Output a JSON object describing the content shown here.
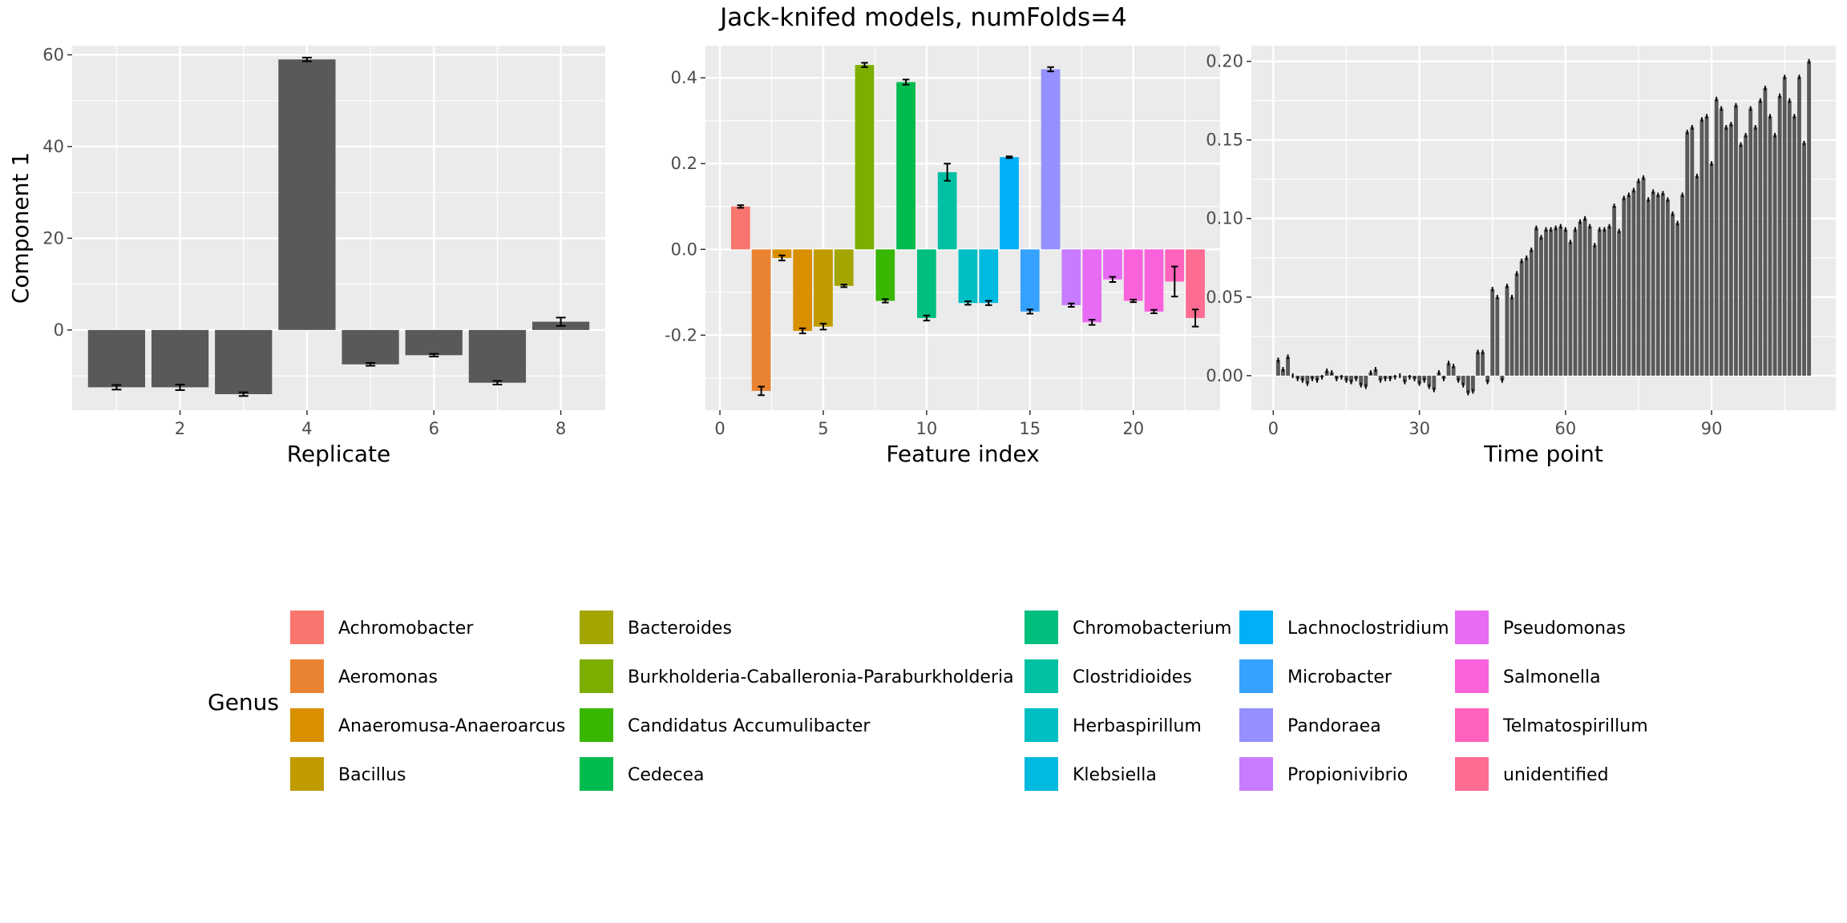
{
  "title": "Jack-knifed models, numFolds=4",
  "colors": {
    "panel_bg": "#ebebeb",
    "grid": "#ffffff",
    "bar_gray": "#595959",
    "tick_text": "#4d4d4d",
    "text": "#000000"
  },
  "chart_data": [
    {
      "type": "bar",
      "panel": "replicate",
      "xlabel": "Replicate",
      "ylabel": "Component 1",
      "xlim": [
        0.3,
        8.7
      ],
      "ylim": [
        -17.5,
        62
      ],
      "xticks": [
        2,
        4,
        6,
        8
      ],
      "yticks": [
        0,
        20,
        40,
        60
      ],
      "yminor": [
        -10,
        10,
        30,
        50
      ],
      "x": [
        1,
        2,
        3,
        4,
        5,
        6,
        7,
        8
      ],
      "values": [
        -12.5,
        -12.5,
        -14,
        59,
        -7.5,
        -5.5,
        -11.5,
        1.8
      ],
      "error": [
        0.5,
        0.6,
        0.4,
        0.4,
        0.3,
        0.3,
        0.4,
        0.9
      ],
      "color": "#595959"
    },
    {
      "type": "bar",
      "panel": "feature",
      "xlabel": "Feature index",
      "ylabel": "",
      "xlim": [
        -0.7,
        24.2
      ],
      "ylim": [
        -0.375,
        0.475
      ],
      "xticks": [
        0,
        5,
        10,
        15,
        20
      ],
      "yticks": [
        -0.2,
        0.0,
        0.2,
        0.4
      ],
      "ytick_labels": [
        "-0.2",
        "0.0",
        "0.2",
        "0.4"
      ],
      "yminor": [
        -0.3,
        -0.1,
        0.1,
        0.3
      ],
      "x": [
        1,
        2,
        3,
        4,
        5,
        6,
        7,
        8,
        9,
        10,
        11,
        12,
        13,
        14,
        15,
        16,
        17,
        18,
        19,
        20,
        21,
        22,
        23
      ],
      "values": [
        0.1,
        -0.33,
        -0.02,
        -0.19,
        -0.18,
        -0.085,
        0.43,
        -0.12,
        0.39,
        -0.16,
        0.18,
        -0.125,
        -0.125,
        0.215,
        -0.145,
        0.42,
        -0.13,
        -0.17,
        -0.07,
        -0.12,
        -0.145,
        -0.075,
        -0.16
      ],
      "error": [
        0.003,
        0.01,
        0.006,
        0.006,
        0.007,
        0.003,
        0.005,
        0.004,
        0.006,
        0.006,
        0.02,
        0.004,
        0.005,
        0.002,
        0.005,
        0.005,
        0.004,
        0.006,
        0.006,
        0.003,
        0.004,
        0.035,
        0.02
      ],
      "genus": [
        "Achromobacter",
        "Aeromonas",
        "Anaeromusa-Anaeroarcus",
        "Anaeromusa-Anaeroarcus",
        "Bacillus",
        "Bacteroides",
        "Burkholderia-Caballeronia-Paraburkholderia",
        "Candidatus Accumulibacter",
        "Cedecea",
        "Chromobacterium",
        "Clostridioides",
        "Herbaspirillum",
        "Klebsiella",
        "Lachnoclostridium",
        "Microbacter",
        "Pandoraea",
        "Propionivibrio",
        "Pseudomonas",
        "Pseudomonas",
        "Salmonella",
        "Salmonella",
        "Telmatospirillum",
        "unidentified"
      ]
    },
    {
      "type": "bar",
      "panel": "timepoint",
      "xlabel": "Time point",
      "ylabel": "",
      "xlim": [
        -4.5,
        115.5
      ],
      "ylim": [
        -0.022,
        0.21
      ],
      "xticks": [
        0,
        30,
        60,
        90
      ],
      "yticks": [
        0.0,
        0.05,
        0.1,
        0.15,
        0.2
      ],
      "ytick_labels": [
        "0.00",
        "0.05",
        "0.10",
        "0.15",
        "0.20"
      ],
      "yminor": [
        0.025,
        0.075,
        0.125,
        0.175
      ],
      "x": [
        1,
        2,
        3,
        4,
        5,
        6,
        7,
        8,
        9,
        10,
        11,
        12,
        13,
        14,
        15,
        16,
        17,
        18,
        19,
        20,
        21,
        22,
        23,
        24,
        25,
        26,
        27,
        28,
        29,
        30,
        31,
        32,
        33,
        34,
        35,
        36,
        37,
        38,
        39,
        40,
        41,
        42,
        43,
        44,
        45,
        46,
        47,
        48,
        49,
        50,
        51,
        52,
        53,
        54,
        55,
        56,
        57,
        58,
        59,
        60,
        61,
        62,
        63,
        64,
        65,
        66,
        67,
        68,
        69,
        70,
        71,
        72,
        73,
        74,
        75,
        76,
        77,
        78,
        79,
        80,
        81,
        82,
        83,
        84,
        85,
        86,
        87,
        88,
        89,
        90,
        91,
        92,
        93,
        94,
        95,
        96,
        97,
        98,
        99,
        100,
        101,
        102,
        103,
        104,
        105,
        106,
        107,
        108,
        109,
        110
      ],
      "values": [
        0.01,
        0.004,
        0.012,
        0.0,
        -0.002,
        -0.003,
        -0.005,
        -0.002,
        -0.003,
        -0.001,
        0.003,
        0.002,
        -0.002,
        -0.001,
        -0.003,
        -0.004,
        -0.002,
        -0.006,
        -0.007,
        0.002,
        0.004,
        -0.003,
        -0.002,
        -0.002,
        -0.001,
        0.0,
        -0.004,
        -0.001,
        -0.002,
        -0.005,
        -0.003,
        -0.007,
        -0.009,
        0.002,
        -0.002,
        0.008,
        0.006,
        -0.003,
        -0.006,
        -0.011,
        -0.01,
        0.015,
        0.015,
        -0.004,
        0.055,
        0.05,
        -0.003,
        0.057,
        0.05,
        0.065,
        0.073,
        0.075,
        0.08,
        0.094,
        0.088,
        0.093,
        0.093,
        0.094,
        0.095,
        0.093,
        0.085,
        0.093,
        0.098,
        0.1,
        0.095,
        0.083,
        0.093,
        0.093,
        0.095,
        0.108,
        0.092,
        0.113,
        0.115,
        0.118,
        0.124,
        0.126,
        0.112,
        0.117,
        0.115,
        0.116,
        0.112,
        0.103,
        0.097,
        0.115,
        0.155,
        0.158,
        0.127,
        0.163,
        0.165,
        0.135,
        0.176,
        0.17,
        0.158,
        0.16,
        0.172,
        0.147,
        0.153,
        0.17,
        0.158,
        0.175,
        0.183,
        0.165,
        0.153,
        0.178,
        0.19,
        0.175,
        0.165,
        0.19,
        0.148,
        0.2
      ],
      "error": 0.001,
      "color": "#595959"
    }
  ],
  "legend": {
    "title": "Genus",
    "items": [
      {
        "label": "Achromobacter",
        "color": "#F8766D"
      },
      {
        "label": "Aeromonas",
        "color": "#EA8331"
      },
      {
        "label": "Anaeromusa-Anaeroarcus",
        "color": "#D89000"
      },
      {
        "label": "Bacillus",
        "color": "#C09B00"
      },
      {
        "label": "Bacteroides",
        "color": "#A3A500"
      },
      {
        "label": "Burkholderia-Caballeronia-Paraburkholderia",
        "color": "#7CAE00"
      },
      {
        "label": "Candidatus Accumulibacter",
        "color": "#39B600"
      },
      {
        "label": "Cedecea",
        "color": "#00BB4E"
      },
      {
        "label": "Chromobacterium",
        "color": "#00BF7D"
      },
      {
        "label": "Clostridioides",
        "color": "#00C1A3"
      },
      {
        "label": "Herbaspirillum",
        "color": "#00BFC4"
      },
      {
        "label": "Klebsiella",
        "color": "#00BAE0"
      },
      {
        "label": "Lachnoclostridium",
        "color": "#00B0F6"
      },
      {
        "label": "Microbacter",
        "color": "#35A2FF"
      },
      {
        "label": "Pandoraea",
        "color": "#9590FF"
      },
      {
        "label": "Propionivibrio",
        "color": "#C77CFF"
      },
      {
        "label": "Pseudomonas",
        "color": "#E76BF3"
      },
      {
        "label": "Salmonella",
        "color": "#FA62DB"
      },
      {
        "label": "Telmatospirillum",
        "color": "#FF62BC"
      },
      {
        "label": "unidentified",
        "color": "#FF6C91"
      }
    ]
  }
}
